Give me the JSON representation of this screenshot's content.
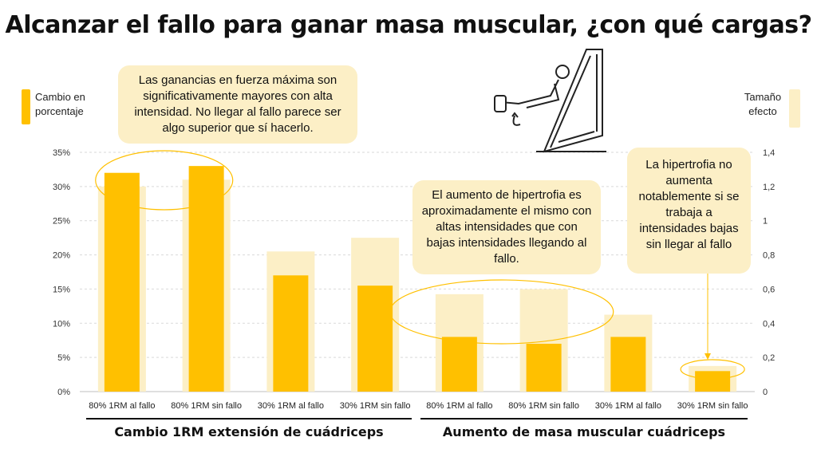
{
  "title": "Alcanzar el fallo para ganar masa muscular, ¿con qué cargas?",
  "legend": {
    "left": "Cambio en porcentaje",
    "right": "Tamaño efecto"
  },
  "callouts": [
    "Las ganancias en fuerza máxima son significativamente mayores con alta intensidad. No llegar al fallo parece ser algo superior que sí hacerlo.",
    "El aumento de hipertrofia es aproximadamente el mismo con altas intensidades que con bajas intensidades llegando al fallo.",
    "La hipertrofia no aumenta notablemente si se trabaja a intensidades bajas sin llegar al fallo"
  ],
  "group_labels": [
    "Cambio 1RM extensión de cuádriceps",
    "Aumento de masa muscular cuádriceps"
  ],
  "colors": {
    "primary": "#FFC000",
    "effect": "#FCEFC6",
    "grid": "#d9d9d9"
  },
  "chart_data": {
    "type": "bar",
    "categories": [
      "80% 1RM al fallo",
      "80% 1RM sin fallo",
      "30% 1RM al fallo",
      "30% 1RM sin fallo",
      "80% 1RM al fallo",
      "80% 1RM sin fallo",
      "30% 1RM al fallo",
      "30% 1RM sin fallo"
    ],
    "series": [
      {
        "name": "Cambio en porcentaje",
        "axis": "left",
        "values": [
          32,
          33,
          17,
          15.5,
          8,
          7,
          8,
          3
        ]
      },
      {
        "name": "Tamaño efecto",
        "axis": "right",
        "values": [
          1.2,
          1.24,
          0.82,
          0.9,
          0.57,
          0.6,
          0.45,
          0.15
        ]
      }
    ],
    "y_left": {
      "ylim": [
        0,
        35
      ],
      "ticks": [
        "0%",
        "5%",
        "10%",
        "15%",
        "20%",
        "25%",
        "30%",
        "35%"
      ]
    },
    "y_right": {
      "ylim": [
        0,
        1.4
      ],
      "ticks": [
        "0",
        "0,2",
        "0,4",
        "0,6",
        "0,8",
        "1",
        "1,2",
        "1,4"
      ]
    },
    "grid": true
  }
}
